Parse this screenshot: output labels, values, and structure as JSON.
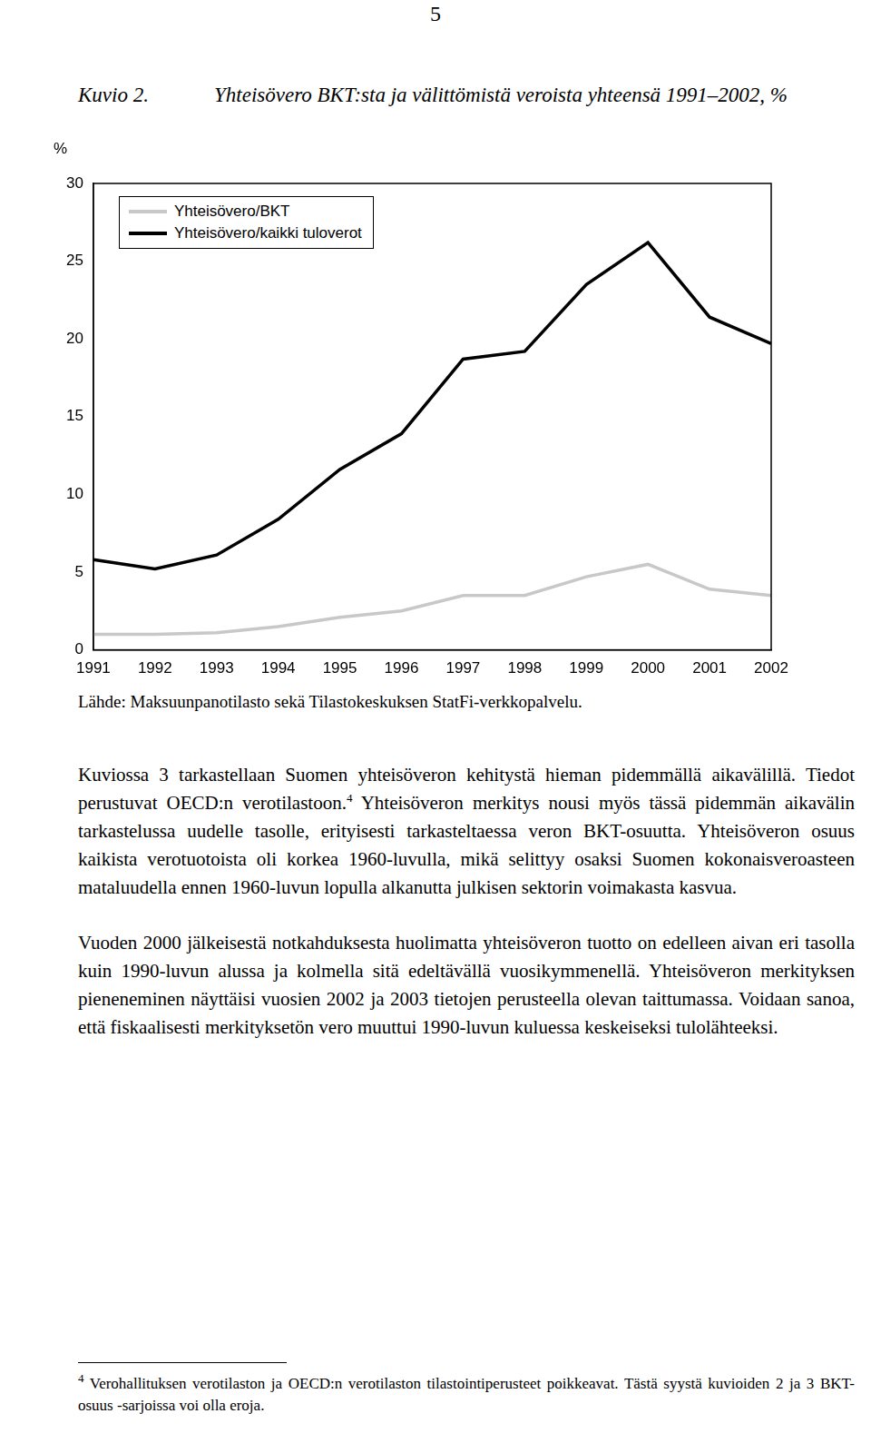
{
  "page_number": "5",
  "figure_label": "Kuvio 2.",
  "chart_data": {
    "type": "line",
    "title": "Yhteisövero BKT:sta ja välittömistä veroista yhteensä 1991–2002, %",
    "y_label": "%",
    "categories": [
      "1991",
      "1992",
      "1993",
      "1994",
      "1995",
      "1996",
      "1997",
      "1998",
      "1999",
      "2000",
      "2001",
      "2002"
    ],
    "series": [
      {
        "name": "Yhteisövero/BKT",
        "color": "#c8c8c8",
        "marker": "none",
        "line_style": "solid",
        "values": [
          1.0,
          1.0,
          1.1,
          1.5,
          2.1,
          2.5,
          3.5,
          3.5,
          4.7,
          5.5,
          3.9,
          3.5
        ]
      },
      {
        "name": "Yhteisövero/kaikki tuloverot",
        "color": "#000000",
        "marker": "none",
        "line_style": "solid",
        "values": [
          5.8,
          5.2,
          6.1,
          8.4,
          11.6,
          13.9,
          18.7,
          19.2,
          23.5,
          26.2,
          21.4,
          19.7
        ]
      }
    ],
    "ylim": [
      0,
      30
    ],
    "yticks": [
      0,
      5,
      10,
      15,
      20,
      25,
      30
    ],
    "grid": false,
    "legend": "upper left"
  },
  "source": "Lähde: Maksuunpanotilasto sekä Tilastokeskuksen StatFi-verkkopalvelu.",
  "paragraphs": [
    {
      "before": "Kuviossa 3 tarkastellaan Suomen yhteisöveron kehitystä hieman pidemmällä aikavälillä. Tiedot perustuvat OECD:n verotilastoon.",
      "footnote_ref": "4",
      "after": " Yhteisöveron merkitys nousi myös tässä pidemmän aikavälin tarkastelussa uudelle tasolle, erityisesti tarkasteltaessa veron BKT-osuutta. Yhteisöveron osuus kaikista verotuotoista oli korkea 1960-luvulla, mikä selittyy osaksi Suomen kokonaisveroasteen mataluudella ennen 1960-luvun lopulla alkanutta julkisen sektorin voimakasta kasvua."
    },
    {
      "before": "Vuoden 2000 jälkeisestä notkahduksesta huolimatta yhteisöveron tuotto on edelleen aivan eri tasolla kuin 1990-luvun alussa ja kolmella sitä edeltävällä vuosikymmenellä. Yhteisöveron merkityksen pieneneminen näyttäisi vuosien 2002 ja 2003 tietojen perusteella olevan taittumassa. Voidaan sanoa, että fiskaalisesti merkityksetön vero muuttui 1990-luvun kuluessa keskeiseksi tulolähteeksi."
    }
  ],
  "footnote": {
    "mark": "4",
    "text": "Verohallituksen verotilaston ja OECD:n verotilaston tilastointiperusteet poikkeavat. Tästä syystä kuvioiden 2 ja 3 BKT-osuus -sarjoissa voi olla eroja."
  }
}
